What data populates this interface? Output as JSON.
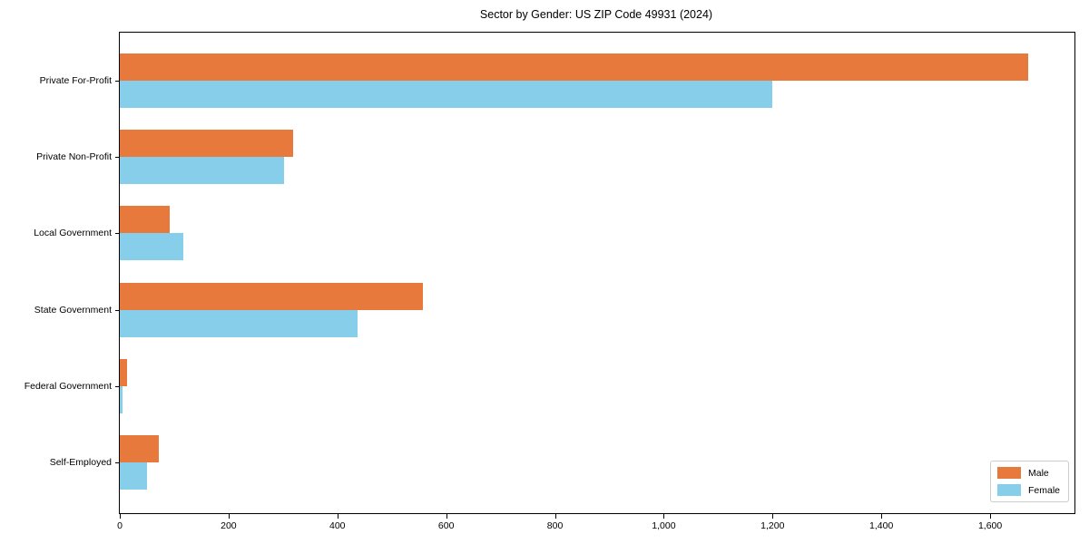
{
  "chart_data": {
    "type": "bar",
    "orientation": "horizontal",
    "title": "Sector by Gender: US ZIP Code 49931 (2024)",
    "categories": [
      "Private For-Profit",
      "Private Non-Profit",
      "Local Government",
      "State Government",
      "Federal Government",
      "Self-Employed"
    ],
    "series": [
      {
        "name": "Male",
        "color": "#e8793d",
        "values": [
          1670,
          318,
          92,
          558,
          13,
          72
        ]
      },
      {
        "name": "Female",
        "color": "#87ceeb",
        "values": [
          1200,
          302,
          117,
          437,
          5,
          50
        ]
      }
    ],
    "xlabel": "",
    "ylabel": "",
    "xlim": [
      0,
      1755
    ],
    "x_ticks": [
      0,
      200,
      400,
      600,
      800,
      1000,
      1200,
      1400,
      1600
    ],
    "grid": false,
    "legend_position": "lower right"
  },
  "colors": {
    "axis": "#000000",
    "background": "#ffffff",
    "legend_border": "#cccccc",
    "male": "#e8793d",
    "female": "#87ceeb"
  }
}
